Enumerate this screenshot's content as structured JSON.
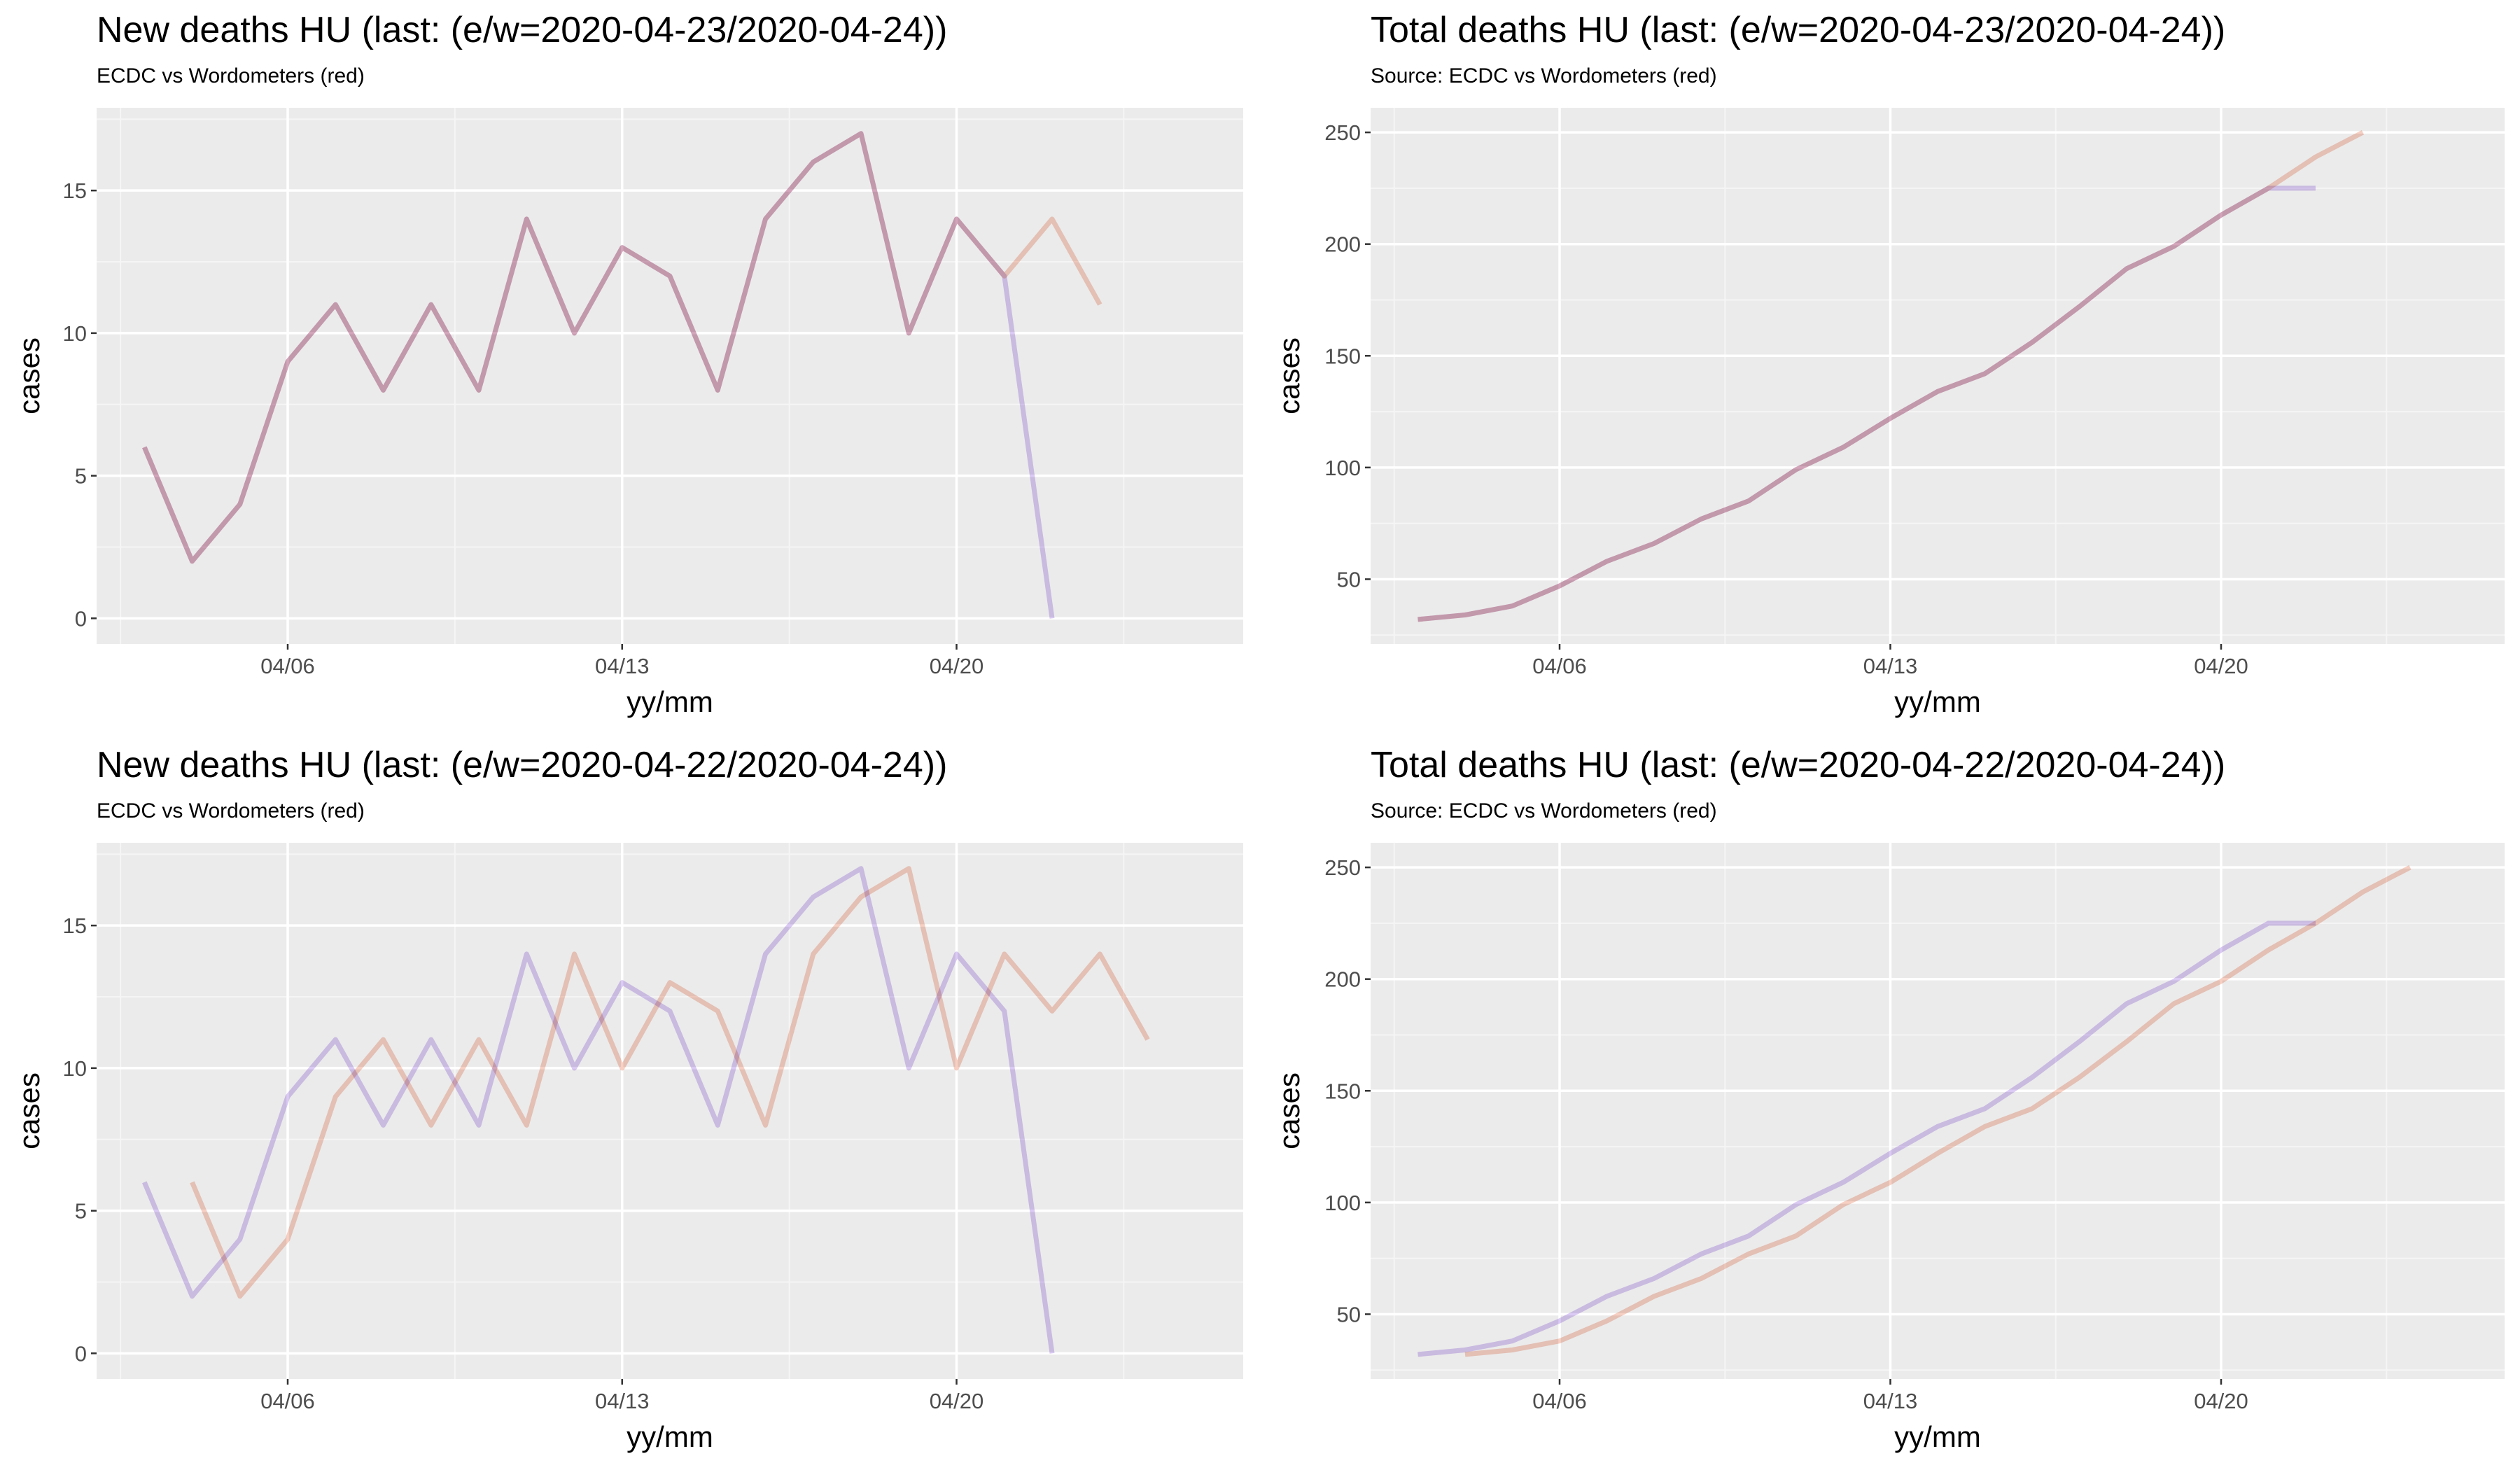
{
  "chart_data": [
    {
      "type": "line",
      "title": "New deaths HU (last: (e/w=2020-04-23/2020-04-24))",
      "subtitle": "ECDC vs Wordometers (red)",
      "xlabel": "yy/mm",
      "ylabel": "cases",
      "x_tick_labels": [
        "04/06",
        "04/13",
        "04/20"
      ],
      "x_ticks": [
        "2020-04-06",
        "2020-04-13",
        "2020-04-20"
      ],
      "y_ticks": [
        0,
        5,
        10,
        15
      ],
      "xlim": [
        "2020-04-02",
        "2020-04-26"
      ],
      "ylim": [
        -0.9,
        17.9
      ],
      "grid": true,
      "series": [
        {
          "color": "#d6c4f3",
          "x": [
            "2020-04-03",
            "2020-04-04",
            "2020-04-05",
            "2020-04-06",
            "2020-04-07",
            "2020-04-08",
            "2020-04-09",
            "2020-04-10",
            "2020-04-11",
            "2020-04-12",
            "2020-04-13",
            "2020-04-14",
            "2020-04-15",
            "2020-04-16",
            "2020-04-17",
            "2020-04-18",
            "2020-04-19",
            "2020-04-20",
            "2020-04-21",
            "2020-04-22",
            "2020-04-23"
          ],
          "values": [
            6,
            2,
            4,
            9,
            11,
            8,
            11,
            8,
            14,
            10,
            13,
            12,
            8,
            14,
            16,
            17,
            10,
            14,
            12,
            0,
            null
          ]
        },
        {
          "color": "#f7cbbd",
          "x": [
            "2020-04-03",
            "2020-04-04",
            "2020-04-05",
            "2020-04-06",
            "2020-04-07",
            "2020-04-08",
            "2020-04-09",
            "2020-04-10",
            "2020-04-11",
            "2020-04-12",
            "2020-04-13",
            "2020-04-14",
            "2020-04-15",
            "2020-04-16",
            "2020-04-17",
            "2020-04-18",
            "2020-04-19",
            "2020-04-20",
            "2020-04-21",
            "2020-04-22",
            "2020-04-23",
            "2020-04-24"
          ],
          "values": [
            6,
            2,
            4,
            9,
            11,
            8,
            11,
            8,
            14,
            10,
            13,
            12,
            8,
            14,
            16,
            17,
            10,
            14,
            12,
            14,
            11,
            null
          ]
        }
      ]
    },
    {
      "type": "line",
      "title": "Total deaths HU (last: (e/w=2020-04-23/2020-04-24))",
      "subtitle": "Source: ECDC vs Wordometers (red)",
      "xlabel": "yy/mm",
      "ylabel": "cases",
      "x_tick_labels": [
        "04/06",
        "04/13",
        "04/20"
      ],
      "x_ticks": [
        "2020-04-06",
        "2020-04-13",
        "2020-04-20"
      ],
      "y_ticks": [
        50,
        100,
        150,
        200,
        250
      ],
      "xlim": [
        "2020-04-02",
        "2020-04-26"
      ],
      "ylim": [
        21,
        261
      ],
      "grid": true,
      "series": [
        {
          "color": "#d6c4f3",
          "x": [
            "2020-04-03",
            "2020-04-04",
            "2020-04-05",
            "2020-04-06",
            "2020-04-07",
            "2020-04-08",
            "2020-04-09",
            "2020-04-10",
            "2020-04-11",
            "2020-04-12",
            "2020-04-13",
            "2020-04-14",
            "2020-04-15",
            "2020-04-16",
            "2020-04-17",
            "2020-04-18",
            "2020-04-19",
            "2020-04-20",
            "2020-04-21",
            "2020-04-22",
            "2020-04-23"
          ],
          "values": [
            32,
            34,
            38,
            47,
            58,
            66,
            77,
            85,
            99,
            109,
            122,
            134,
            142,
            156,
            172,
            189,
            199,
            213,
            225,
            225,
            null
          ]
        },
        {
          "color": "#f7cbbd",
          "x": [
            "2020-04-03",
            "2020-04-04",
            "2020-04-05",
            "2020-04-06",
            "2020-04-07",
            "2020-04-08",
            "2020-04-09",
            "2020-04-10",
            "2020-04-11",
            "2020-04-12",
            "2020-04-13",
            "2020-04-14",
            "2020-04-15",
            "2020-04-16",
            "2020-04-17",
            "2020-04-18",
            "2020-04-19",
            "2020-04-20",
            "2020-04-21",
            "2020-04-22",
            "2020-04-23",
            "2020-04-24"
          ],
          "values": [
            32,
            34,
            38,
            47,
            58,
            66,
            77,
            85,
            99,
            109,
            122,
            134,
            142,
            156,
            172,
            189,
            199,
            213,
            225,
            239,
            250,
            null
          ]
        }
      ]
    },
    {
      "type": "line",
      "title": "New deaths HU (last: (e/w=2020-04-22/2020-04-24))",
      "subtitle": "ECDC vs Wordometers (red)",
      "xlabel": "yy/mm",
      "ylabel": "cases",
      "x_tick_labels": [
        "04/06",
        "04/13",
        "04/20"
      ],
      "x_ticks": [
        "2020-04-06",
        "2020-04-13",
        "2020-04-20"
      ],
      "y_ticks": [
        0,
        5,
        10,
        15
      ],
      "xlim": [
        "2020-04-02",
        "2020-04-26"
      ],
      "ylim": [
        -0.9,
        17.9
      ],
      "grid": true,
      "series": [
        {
          "color": "#d6c4f3",
          "x": [
            "2020-04-03",
            "2020-04-04",
            "2020-04-05",
            "2020-04-06",
            "2020-04-07",
            "2020-04-08",
            "2020-04-09",
            "2020-04-10",
            "2020-04-11",
            "2020-04-12",
            "2020-04-13",
            "2020-04-14",
            "2020-04-15",
            "2020-04-16",
            "2020-04-17",
            "2020-04-18",
            "2020-04-19",
            "2020-04-20",
            "2020-04-21",
            "2020-04-22"
          ],
          "values": [
            6,
            2,
            4,
            9,
            11,
            8,
            11,
            8,
            14,
            10,
            13,
            12,
            8,
            14,
            16,
            17,
            10,
            14,
            12,
            0
          ]
        },
        {
          "color": "#f7cbbd",
          "x": [
            "2020-04-04",
            "2020-04-05",
            "2020-04-06",
            "2020-04-07",
            "2020-04-08",
            "2020-04-09",
            "2020-04-10",
            "2020-04-11",
            "2020-04-12",
            "2020-04-13",
            "2020-04-14",
            "2020-04-15",
            "2020-04-16",
            "2020-04-17",
            "2020-04-18",
            "2020-04-19",
            "2020-04-20",
            "2020-04-21",
            "2020-04-22",
            "2020-04-23",
            "2020-04-24"
          ],
          "values": [
            6,
            2,
            4,
            9,
            11,
            8,
            11,
            8,
            14,
            10,
            13,
            12,
            8,
            14,
            16,
            17,
            10,
            14,
            12,
            14,
            11
          ]
        }
      ]
    },
    {
      "type": "line",
      "title": "Total deaths HU (last: (e/w=2020-04-22/2020-04-24))",
      "subtitle": "Source: ECDC vs Wordometers (red)",
      "xlabel": "yy/mm",
      "ylabel": "cases",
      "x_tick_labels": [
        "04/06",
        "04/13",
        "04/20"
      ],
      "x_ticks": [
        "2020-04-06",
        "2020-04-13",
        "2020-04-20"
      ],
      "y_ticks": [
        50,
        100,
        150,
        200,
        250
      ],
      "xlim": [
        "2020-04-02",
        "2020-04-26"
      ],
      "ylim": [
        21,
        261
      ],
      "grid": true,
      "series": [
        {
          "color": "#d6c4f3",
          "x": [
            "2020-04-03",
            "2020-04-04",
            "2020-04-05",
            "2020-04-06",
            "2020-04-07",
            "2020-04-08",
            "2020-04-09",
            "2020-04-10",
            "2020-04-11",
            "2020-04-12",
            "2020-04-13",
            "2020-04-14",
            "2020-04-15",
            "2020-04-16",
            "2020-04-17",
            "2020-04-18",
            "2020-04-19",
            "2020-04-20",
            "2020-04-21",
            "2020-04-22"
          ],
          "values": [
            32,
            34,
            38,
            47,
            58,
            66,
            77,
            85,
            99,
            109,
            122,
            134,
            142,
            156,
            172,
            189,
            199,
            213,
            225,
            225
          ]
        },
        {
          "color": "#f7cbbd",
          "x": [
            "2020-04-04",
            "2020-04-05",
            "2020-04-06",
            "2020-04-07",
            "2020-04-08",
            "2020-04-09",
            "2020-04-10",
            "2020-04-11",
            "2020-04-12",
            "2020-04-13",
            "2020-04-14",
            "2020-04-15",
            "2020-04-16",
            "2020-04-17",
            "2020-04-18",
            "2020-04-19",
            "2020-04-20",
            "2020-04-21",
            "2020-04-22",
            "2020-04-23",
            "2020-04-24"
          ],
          "values": [
            32,
            34,
            38,
            47,
            58,
            66,
            77,
            85,
            99,
            109,
            122,
            134,
            142,
            156,
            172,
            189,
            199,
            213,
            225,
            239,
            250
          ]
        }
      ]
    }
  ]
}
